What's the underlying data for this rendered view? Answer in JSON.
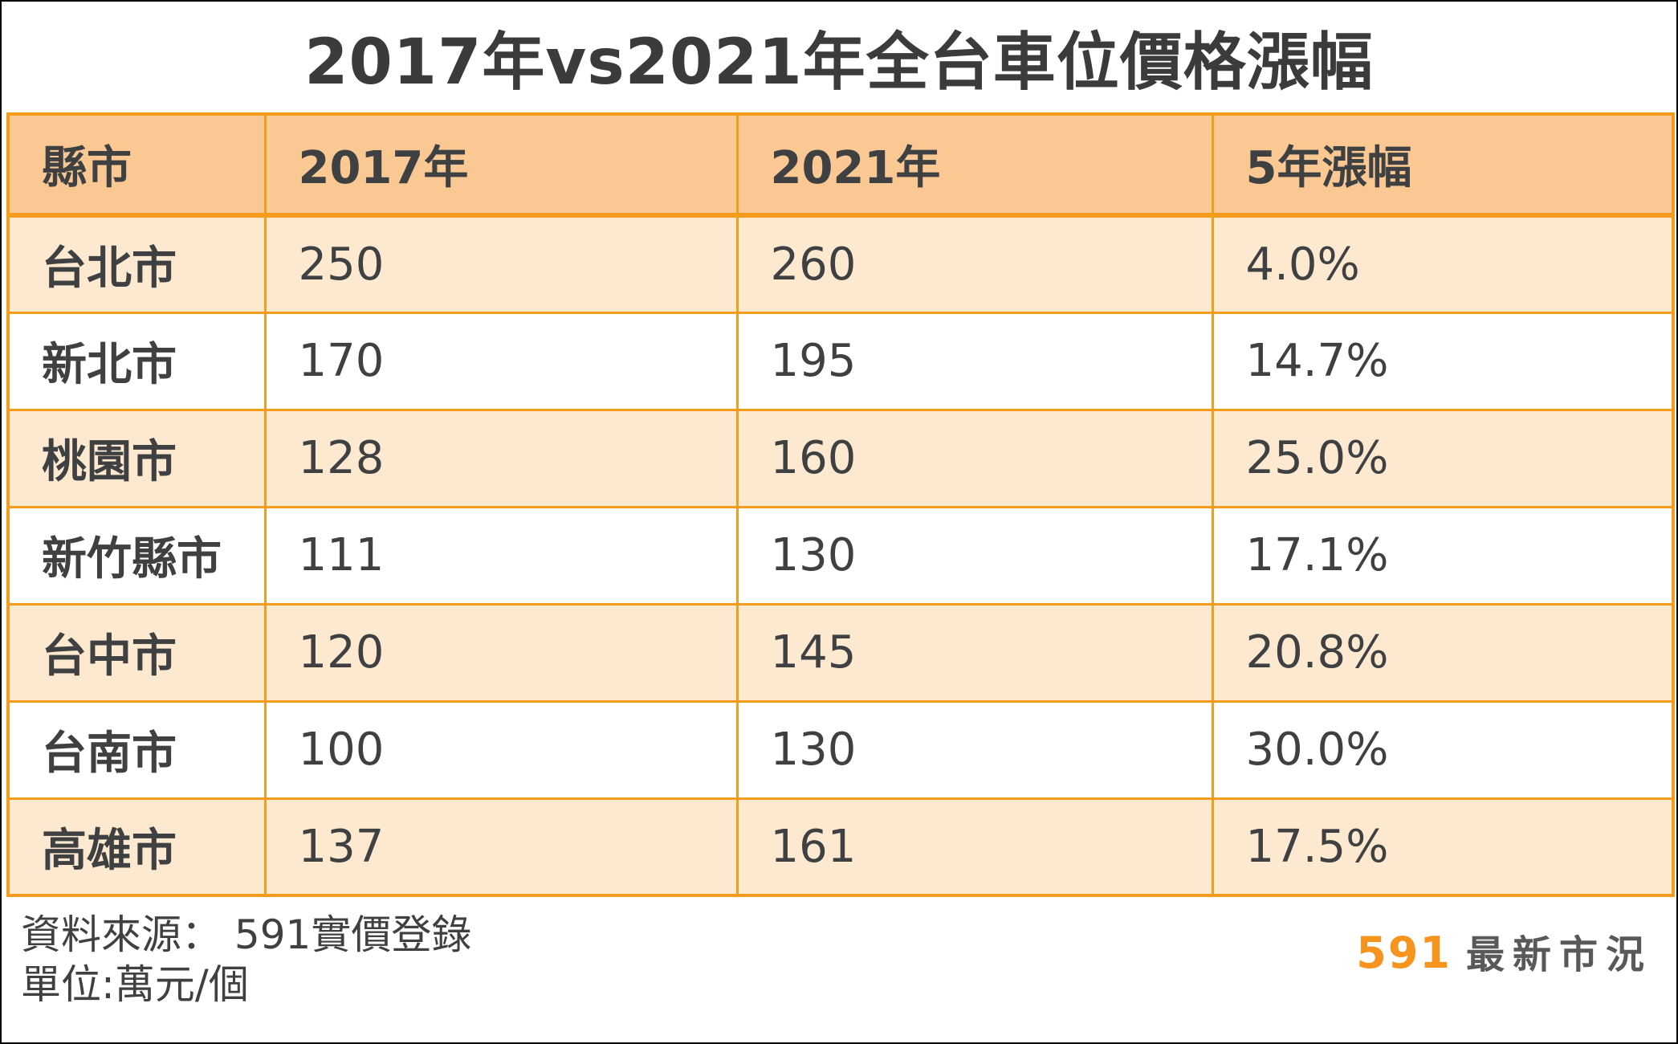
{
  "title": "2017年vs2021年全台車位價格漲幅",
  "chart_data": {
    "type": "table",
    "title": "2017年vs2021年全台車位價格漲幅",
    "columns": [
      "縣市",
      "2017年",
      "2021年",
      "5年漲幅"
    ],
    "rows": [
      [
        "台北市",
        250,
        260,
        "4.0%"
      ],
      [
        "新北市",
        170,
        195,
        "14.7%"
      ],
      [
        "桃園市",
        128,
        160,
        "25.0%"
      ],
      [
        "新竹縣市",
        111,
        130,
        "17.1%"
      ],
      [
        "台中市",
        120,
        145,
        "20.8%"
      ],
      [
        "台南市",
        100,
        130,
        "30.0%"
      ],
      [
        "高雄市",
        137,
        161,
        "17.5%"
      ]
    ],
    "unit": "萬元/個",
    "source": "591實價登錄"
  },
  "footer": {
    "source_label": "資料來源： 591實價登錄",
    "unit_label": "單位:萬元/個",
    "brand": "591",
    "brand_text": "最新市況"
  },
  "colors": {
    "header_bg": "#FAC892",
    "row_alt_bg": "#FDE9D0",
    "row_bg": "#FFFFFF",
    "border": "#F59B1E",
    "text": "#3F4042",
    "title_text": "#3B3B3D",
    "brand_orange": "#F7941E",
    "brand_gray": "#58595B"
  }
}
